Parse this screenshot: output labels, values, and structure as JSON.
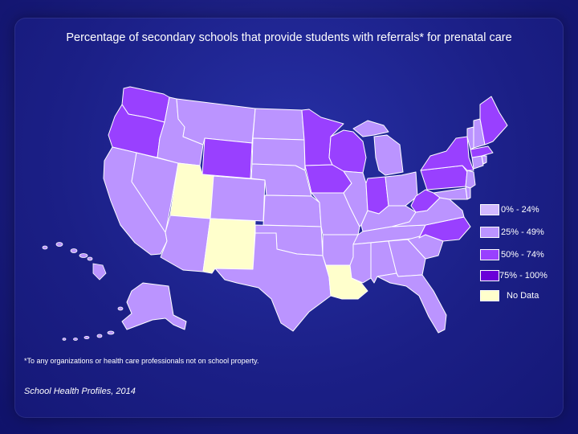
{
  "title": "Percentage of secondary schools that provide students with referrals* for prenatal care",
  "legend": {
    "items": [
      {
        "label": "0% - 24%",
        "color": "#d2b8ff"
      },
      {
        "label": "25% - 49%",
        "color": "#bb94ff"
      },
      {
        "label": "50% - 74%",
        "color": "#9940ff"
      },
      {
        "label": "75% - 100%",
        "color": "#6a00d8"
      },
      {
        "label": "No Data",
        "color": "#ffffcc"
      }
    ]
  },
  "footnote": "*To any organizations or health care professionals not on school property.",
  "source": "School Health Profiles, 2014",
  "colors": {
    "category_25_49": "#bb94ff",
    "category_50_74": "#9940ff",
    "no_data": "#ffffcc",
    "border": "#ffffff"
  }
}
